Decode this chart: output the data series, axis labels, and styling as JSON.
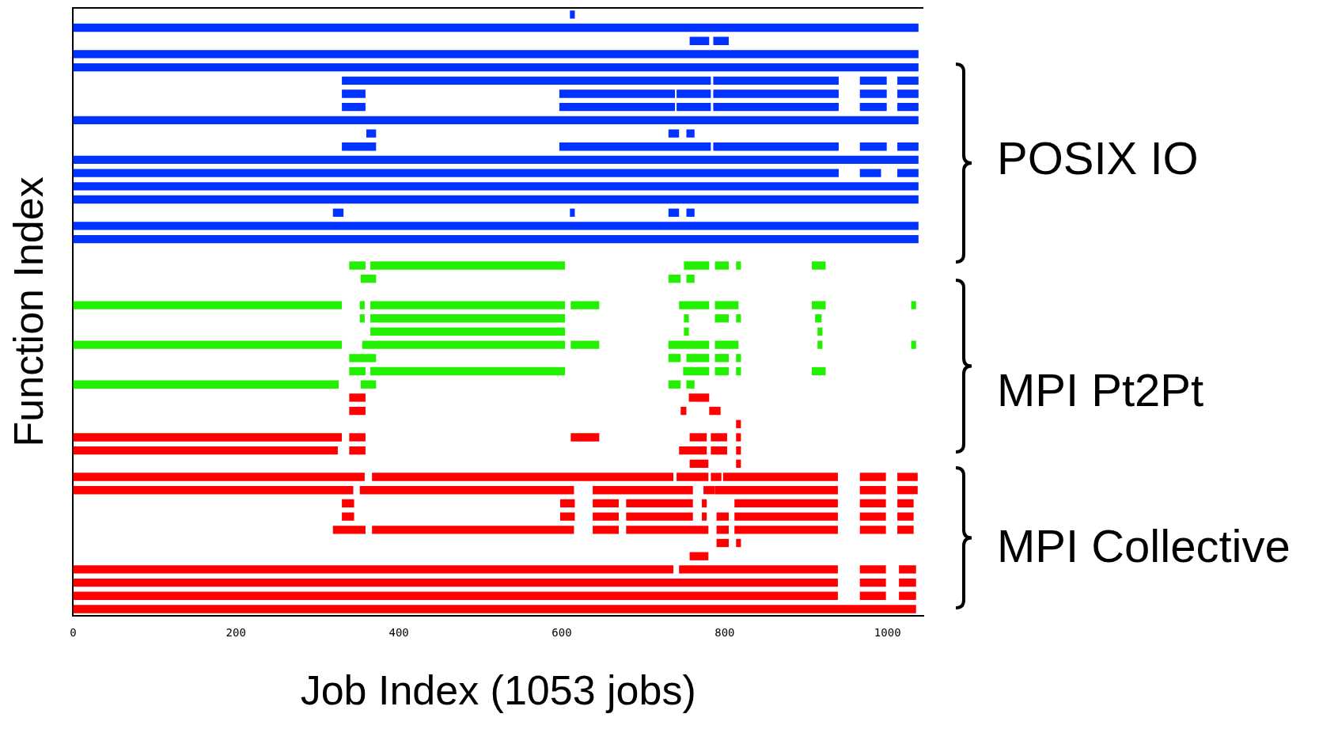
{
  "chart_data": {
    "type": "bar",
    "orientation": "horizontal",
    "xlabel": "Job Index (1053 jobs)",
    "ylabel": "Function Index",
    "annotations": [
      "POSIX IO",
      "MPI Pt2Pt",
      "MPI Collective"
    ],
    "categories": [
      null,
      null,
      null,
      null,
      null,
      null,
      null,
      null,
      null,
      null,
      null,
      null,
      null,
      null,
      null,
      null,
      null,
      null,
      null,
      null,
      null,
      null,
      null,
      null,
      null,
      null,
      null,
      null,
      null,
      null,
      null,
      null,
      null,
      null,
      null,
      null,
      null,
      null,
      null,
      null,
      null,
      null,
      null,
      null,
      null,
      null
    ],
    "xlim": [
      0,
      1044
    ],
    "xticks": [
      0,
      200,
      400,
      600,
      800,
      1000
    ],
    "grid": false,
    "legend": false,
    "tick_labels": "x",
    "series": [
      {
        "base": [
          610,
          0,
          757,
          0,
          0,
          330,
          330,
          330,
          0,
          360,
          330,
          0,
          0,
          0,
          0,
          319,
          0,
          0,
          null,
          339,
          353,
          null,
          0,
          352,
          365,
          0,
          339,
          339,
          0,
          339,
          339,
          814,
          0,
          0,
          757,
          0,
          0,
          330,
          330,
          319,
          790,
          757,
          0,
          0,
          0,
          0
        ],
        "values": [
          6,
          1038,
          24,
          1038,
          1038,
          453,
          29,
          29,
          1038,
          12,
          42,
          1038,
          940,
          1038,
          1038,
          13,
          1038,
          1038,
          null,
          20,
          19,
          null,
          330,
          6,
          239,
          330,
          33,
          20,
          326,
          20,
          20,
          6,
          330,
          325,
          23,
          358,
          344,
          15,
          15,
          40,
          15,
          23,
          737,
          939,
          939,
          1035
        ],
        "colors": [
          "#0033ff",
          "#0033ff",
          "#0033ff",
          "#0033ff",
          "#0033ff",
          "#0033ff",
          "#0033ff",
          "#0033ff",
          "#0033ff",
          "#0033ff",
          "#0033ff",
          "#0033ff",
          "#0033ff",
          "#0033ff",
          "#0033ff",
          "#0033ff",
          "#0033ff",
          "#0033ff",
          "#0033ff",
          "#22f000",
          "#22f000",
          "#22f000",
          "#22f000",
          "#22f000",
          "#22f000",
          "#22f000",
          "#22f000",
          "#22f000",
          "#22f000",
          "#ff0000",
          "#ff0000",
          "#ff0000",
          "#ff0000",
          "#ff0000",
          "#ff0000",
          "#ff0000",
          "#ff0000",
          "#ff0000",
          "#ff0000",
          "#ff0000",
          "#ff0000",
          "#ff0000",
          "#ff0000",
          "#ff0000",
          "#ff0000",
          "#ff0000"
        ]
      },
      {
        "base": [
          null,
          null,
          786,
          null,
          null,
          786,
          597,
          597,
          null,
          731,
          597,
          null,
          966,
          null,
          null,
          610,
          null,
          null,
          null,
          365,
          731,
          null,
          352,
          365,
          750,
          355,
          731,
          365,
          353,
          756,
          746,
          null,
          339,
          339,
          814,
          367,
          352,
          598,
          598,
          367,
          814,
          null,
          744,
          966,
          966,
          null
        ],
        "values": [
          null,
          null,
          19,
          null,
          null,
          154,
          142,
          142,
          null,
          13,
          186,
          null,
          26,
          null,
          null,
          6,
          null,
          null,
          null,
          239,
          15,
          null,
          6,
          239,
          6,
          249,
          15,
          239,
          19,
          25,
          7,
          null,
          20,
          20,
          6,
          370,
          263,
          18,
          18,
          248,
          6,
          null,
          195,
          32,
          32,
          null
        ],
        "colors": [
          "#0033ff",
          "#0033ff",
          "#0033ff",
          "#0033ff",
          "#0033ff",
          "#0033ff",
          "#0033ff",
          "#0033ff",
          "#0033ff",
          "#0033ff",
          "#0033ff",
          "#0033ff",
          "#0033ff",
          "#0033ff",
          "#0033ff",
          "#0033ff",
          "#0033ff",
          "#0033ff",
          "#0033ff",
          "#22f000",
          "#22f000",
          "#22f000",
          "#22f000",
          "#22f000",
          "#22f000",
          "#22f000",
          "#22f000",
          "#22f000",
          "#22f000",
          "#ff0000",
          "#ff0000",
          "#ff0000",
          "#ff0000",
          "#ff0000",
          "#ff0000",
          "#ff0000",
          "#ff0000",
          "#ff0000",
          "#ff0000",
          "#ff0000",
          "#ff0000",
          "#ff0000",
          "#ff0000",
          "#ff0000",
          "#ff0000",
          "#ff0000"
        ]
      },
      {
        "base": [
          null,
          null,
          null,
          null,
          null,
          966,
          741,
          741,
          null,
          753,
          786,
          null,
          1012,
          null,
          null,
          731,
          null,
          null,
          null,
          750,
          753,
          null,
          365,
          750,
          914,
          611,
          753,
          749,
          731,
          null,
          781,
          null,
          611,
          744,
          null,
          741,
          638,
          638,
          638,
          638,
          null,
          null,
          966,
          1014,
          1014,
          null
        ],
        "values": [
          null,
          null,
          null,
          null,
          null,
          33,
          42,
          42,
          null,
          10,
          154,
          null,
          26,
          null,
          null,
          13,
          null,
          null,
          null,
          31,
          10,
          null,
          239,
          6,
          6,
          35,
          28,
          32,
          15,
          null,
          14,
          null,
          35,
          34,
          null,
          39,
          123,
          32,
          32,
          32,
          null,
          null,
          32,
          21,
          21,
          null
        ],
        "colors": [
          "#0033ff",
          "#0033ff",
          "#0033ff",
          "#0033ff",
          "#0033ff",
          "#0033ff",
          "#0033ff",
          "#0033ff",
          "#0033ff",
          "#0033ff",
          "#0033ff",
          "#0033ff",
          "#0033ff",
          "#0033ff",
          "#0033ff",
          "#0033ff",
          "#0033ff",
          "#0033ff",
          "#0033ff",
          "#22f000",
          "#22f000",
          "#22f000",
          "#22f000",
          "#22f000",
          "#22f000",
          "#22f000",
          "#22f000",
          "#22f000",
          "#22f000",
          "#ff0000",
          "#ff0000",
          "#ff0000",
          "#ff0000",
          "#ff0000",
          "#ff0000",
          "#ff0000",
          "#ff0000",
          "#ff0000",
          "#ff0000",
          "#ff0000",
          "#ff0000",
          "#ff0000",
          "#ff0000",
          "#ff0000",
          "#ff0000",
          "#ff0000"
        ]
      },
      {
        "base": [
          null,
          null,
          null,
          null,
          null,
          1012,
          786,
          786,
          null,
          null,
          966,
          null,
          null,
          null,
          null,
          753,
          null,
          null,
          null,
          788,
          null,
          null,
          611,
          788,
          null,
          731,
          788,
          788,
          753,
          null,
          null,
          null,
          757,
          783,
          null,
          783,
          774,
          679,
          679,
          679,
          null,
          null,
          1014,
          null,
          null,
          null
        ],
        "values": [
          null,
          null,
          null,
          null,
          null,
          26,
          154,
          154,
          null,
          null,
          33,
          null,
          null,
          null,
          null,
          10,
          null,
          null,
          null,
          17,
          null,
          null,
          35,
          17,
          null,
          50,
          17,
          17,
          10,
          null,
          null,
          null,
          21,
          20,
          null,
          13,
          14,
          82,
          82,
          101,
          null,
          null,
          21,
          null,
          null,
          null
        ],
        "colors": [
          "#0033ff",
          "#0033ff",
          "#0033ff",
          "#0033ff",
          "#0033ff",
          "#0033ff",
          "#0033ff",
          "#0033ff",
          "#0033ff",
          "#0033ff",
          "#0033ff",
          "#0033ff",
          "#0033ff",
          "#0033ff",
          "#0033ff",
          "#0033ff",
          "#0033ff",
          "#0033ff",
          "#0033ff",
          "#22f000",
          "#22f000",
          "#22f000",
          "#22f000",
          "#22f000",
          "#22f000",
          "#22f000",
          "#22f000",
          "#22f000",
          "#22f000",
          "#ff0000",
          "#ff0000",
          "#ff0000",
          "#ff0000",
          "#ff0000",
          "#ff0000",
          "#ff0000",
          "#ff0000",
          "#ff0000",
          "#ff0000",
          "#ff0000",
          "#ff0000",
          "#ff0000",
          "#ff0000",
          "#ff0000",
          "#ff0000",
          "#ff0000"
        ]
      },
      {
        "base": [
          null,
          null,
          null,
          null,
          null,
          null,
          966,
          966,
          null,
          null,
          1012,
          null,
          null,
          null,
          null,
          null,
          null,
          null,
          null,
          814,
          null,
          null,
          744,
          814,
          null,
          788,
          814,
          814,
          null,
          null,
          null,
          null,
          783,
          814,
          null,
          798,
          788,
          772,
          772,
          790,
          null,
          null,
          null,
          null,
          null,
          null
        ],
        "values": [
          null,
          null,
          null,
          null,
          null,
          null,
          33,
          33,
          null,
          null,
          26,
          null,
          null,
          null,
          null,
          null,
          null,
          null,
          null,
          6,
          null,
          null,
          37,
          6,
          null,
          29,
          6,
          6,
          null,
          null,
          null,
          null,
          20,
          6,
          null,
          141,
          151,
          6,
          6,
          15,
          null,
          null,
          null,
          null,
          null,
          null
        ],
        "colors": [
          "#0033ff",
          "#0033ff",
          "#0033ff",
          "#0033ff",
          "#0033ff",
          "#0033ff",
          "#0033ff",
          "#0033ff",
          "#0033ff",
          "#0033ff",
          "#0033ff",
          "#0033ff",
          "#0033ff",
          "#0033ff",
          "#0033ff",
          "#0033ff",
          "#0033ff",
          "#0033ff",
          "#0033ff",
          "#22f000",
          "#22f000",
          "#22f000",
          "#22f000",
          "#22f000",
          "#22f000",
          "#22f000",
          "#22f000",
          "#22f000",
          "#22f000",
          "#ff0000",
          "#ff0000",
          "#ff0000",
          "#ff0000",
          "#ff0000",
          "#ff0000",
          "#ff0000",
          "#ff0000",
          "#ff0000",
          "#ff0000",
          "#ff0000",
          "#ff0000",
          "#ff0000",
          "#ff0000",
          "#ff0000",
          "#ff0000",
          "#ff0000"
        ]
      },
      {
        "base": [
          null,
          null,
          null,
          null,
          null,
          null,
          1012,
          1012,
          null,
          null,
          null,
          null,
          null,
          null,
          null,
          null,
          null,
          null,
          null,
          907,
          null,
          null,
          788,
          911,
          null,
          914,
          null,
          907,
          null,
          null,
          null,
          null,
          814,
          null,
          null,
          966,
          966,
          812,
          790,
          812,
          null,
          null,
          null,
          null,
          null,
          null
        ],
        "values": [
          null,
          null,
          null,
          null,
          null,
          null,
          26,
          26,
          null,
          null,
          null,
          null,
          null,
          null,
          null,
          null,
          null,
          null,
          null,
          17,
          null,
          null,
          29,
          8,
          null,
          6,
          null,
          17,
          null,
          null,
          null,
          null,
          6,
          null,
          null,
          32,
          32,
          127,
          15,
          127,
          null,
          null,
          null,
          null,
          null,
          null
        ],
        "colors": [
          "#0033ff",
          "#0033ff",
          "#0033ff",
          "#0033ff",
          "#0033ff",
          "#0033ff",
          "#0033ff",
          "#0033ff",
          "#0033ff",
          "#0033ff",
          "#0033ff",
          "#0033ff",
          "#0033ff",
          "#0033ff",
          "#0033ff",
          "#0033ff",
          "#0033ff",
          "#0033ff",
          "#0033ff",
          "#22f000",
          "#22f000",
          "#22f000",
          "#22f000",
          "#22f000",
          "#22f000",
          "#22f000",
          "#22f000",
          "#22f000",
          "#22f000",
          "#ff0000",
          "#ff0000",
          "#ff0000",
          "#ff0000",
          "#ff0000",
          "#ff0000",
          "#ff0000",
          "#ff0000",
          "#ff0000",
          "#ff0000",
          "#ff0000",
          "#ff0000",
          "#ff0000",
          "#ff0000",
          "#ff0000",
          "#ff0000",
          "#ff0000"
        ]
      },
      {
        "base": [
          null,
          null,
          null,
          null,
          null,
          null,
          null,
          null,
          null,
          null,
          null,
          null,
          null,
          null,
          null,
          null,
          null,
          null,
          null,
          null,
          null,
          null,
          907,
          null,
          null,
          1029,
          null,
          null,
          null,
          null,
          null,
          null,
          null,
          null,
          null,
          1012,
          1012,
          966,
          812,
          966,
          null,
          null,
          null,
          null,
          null,
          null
        ],
        "values": [
          null,
          null,
          null,
          null,
          null,
          null,
          null,
          null,
          null,
          null,
          null,
          null,
          null,
          null,
          null,
          null,
          null,
          null,
          null,
          null,
          null,
          null,
          17,
          null,
          null,
          6,
          null,
          null,
          null,
          null,
          null,
          null,
          null,
          null,
          null,
          25,
          25,
          32,
          127,
          32,
          null,
          null,
          null,
          null,
          null,
          null
        ],
        "colors": [
          "#0033ff",
          "#0033ff",
          "#0033ff",
          "#0033ff",
          "#0033ff",
          "#0033ff",
          "#0033ff",
          "#0033ff",
          "#0033ff",
          "#0033ff",
          "#0033ff",
          "#0033ff",
          "#0033ff",
          "#0033ff",
          "#0033ff",
          "#0033ff",
          "#0033ff",
          "#0033ff",
          "#0033ff",
          "#22f000",
          "#22f000",
          "#22f000",
          "#22f000",
          "#22f000",
          "#22f000",
          "#22f000",
          "#22f000",
          "#22f000",
          "#22f000",
          "#ff0000",
          "#ff0000",
          "#ff0000",
          "#ff0000",
          "#ff0000",
          "#ff0000",
          "#ff0000",
          "#ff0000",
          "#ff0000",
          "#ff0000",
          "#ff0000",
          "#ff0000",
          "#ff0000",
          "#ff0000",
          "#ff0000",
          "#ff0000",
          "#ff0000"
        ]
      },
      {
        "base": [
          null,
          null,
          null,
          null,
          null,
          null,
          null,
          null,
          null,
          null,
          null,
          null,
          null,
          null,
          null,
          null,
          null,
          null,
          null,
          null,
          null,
          null,
          1029,
          null,
          null,
          null,
          null,
          null,
          null,
          null,
          null,
          null,
          null,
          null,
          null,
          null,
          null,
          1012,
          966,
          1012,
          null,
          null,
          null,
          null,
          null,
          null
        ],
        "values": [
          null,
          null,
          null,
          null,
          null,
          null,
          null,
          null,
          null,
          null,
          null,
          null,
          null,
          null,
          null,
          null,
          null,
          null,
          null,
          null,
          null,
          null,
          6,
          null,
          null,
          null,
          null,
          null,
          null,
          null,
          null,
          null,
          null,
          null,
          null,
          null,
          null,
          20,
          32,
          20,
          null,
          null,
          null,
          null,
          null,
          null
        ],
        "colors": [
          "#0033ff",
          "#0033ff",
          "#0033ff",
          "#0033ff",
          "#0033ff",
          "#0033ff",
          "#0033ff",
          "#0033ff",
          "#0033ff",
          "#0033ff",
          "#0033ff",
          "#0033ff",
          "#0033ff",
          "#0033ff",
          "#0033ff",
          "#0033ff",
          "#0033ff",
          "#0033ff",
          "#0033ff",
          "#22f000",
          "#22f000",
          "#22f000",
          "#22f000",
          "#22f000",
          "#22f000",
          "#22f000",
          "#22f000",
          "#22f000",
          "#22f000",
          "#ff0000",
          "#ff0000",
          "#ff0000",
          "#ff0000",
          "#ff0000",
          "#ff0000",
          "#ff0000",
          "#ff0000",
          "#ff0000",
          "#ff0000",
          "#ff0000",
          "#ff0000",
          "#ff0000",
          "#ff0000",
          "#ff0000",
          "#ff0000",
          "#ff0000"
        ]
      },
      {
        "base": [
          null,
          null,
          null,
          null,
          null,
          null,
          null,
          null,
          null,
          null,
          null,
          null,
          null,
          null,
          null,
          null,
          null,
          null,
          null,
          null,
          null,
          null,
          null,
          null,
          null,
          null,
          null,
          null,
          null,
          null,
          null,
          null,
          null,
          null,
          null,
          null,
          null,
          null,
          1012,
          null,
          null,
          null,
          null,
          null,
          null,
          null
        ],
        "values": [
          null,
          null,
          null,
          null,
          null,
          null,
          null,
          null,
          null,
          null,
          null,
          null,
          null,
          null,
          null,
          null,
          null,
          null,
          null,
          null,
          null,
          null,
          null,
          null,
          null,
          null,
          null,
          null,
          null,
          null,
          null,
          null,
          null,
          null,
          null,
          null,
          null,
          null,
          20,
          null,
          null,
          null,
          null,
          null,
          null,
          null
        ],
        "colors": [
          "#0033ff",
          "#0033ff",
          "#0033ff",
          "#0033ff",
          "#0033ff",
          "#0033ff",
          "#0033ff",
          "#0033ff",
          "#0033ff",
          "#0033ff",
          "#0033ff",
          "#0033ff",
          "#0033ff",
          "#0033ff",
          "#0033ff",
          "#0033ff",
          "#0033ff",
          "#0033ff",
          "#0033ff",
          "#22f000",
          "#22f000",
          "#22f000",
          "#22f000",
          "#22f000",
          "#22f000",
          "#22f000",
          "#22f000",
          "#22f000",
          "#22f000",
          "#ff0000",
          "#ff0000",
          "#ff0000",
          "#ff0000",
          "#ff0000",
          "#ff0000",
          "#ff0000",
          "#ff0000",
          "#ff0000",
          "#ff0000",
          "#ff0000",
          "#ff0000",
          "#ff0000",
          "#ff0000",
          "#ff0000",
          "#ff0000",
          "#ff0000"
        ]
      }
    ]
  }
}
